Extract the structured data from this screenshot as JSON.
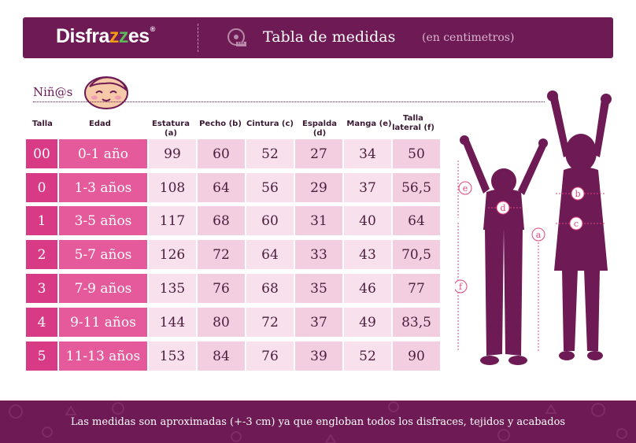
{
  "header": {
    "brand_prefix": "Disfra",
    "brand_z1": "z",
    "brand_z2": "z",
    "brand_suffix": "es",
    "brand_mark": "®",
    "title": "Tabla de medidas",
    "subtitle": "(en centimetros)",
    "icon": "measuring-tape-icon"
  },
  "section": {
    "label": "Niñ@s",
    "icon": "baby-face-icon"
  },
  "columns": [
    "Talla",
    "Edad",
    "Estatura (a)",
    "Pecho (b)",
    "Cintura (c)",
    "Espalda (d)",
    "Manga (e)",
    "Talla lateral (f)"
  ],
  "rows": [
    [
      "00",
      "0-1  año",
      "99",
      "60",
      "52",
      "27",
      "34",
      "50"
    ],
    [
      "0",
      "1-3 años",
      "108",
      "64",
      "56",
      "29",
      "37",
      "56,5"
    ],
    [
      "1",
      "3-5 años",
      "117",
      "68",
      "60",
      "31",
      "40",
      "64"
    ],
    [
      "2",
      "5-7 años",
      "126",
      "72",
      "64",
      "33",
      "43",
      "70,5"
    ],
    [
      "3",
      "7-9 años",
      "135",
      "76",
      "68",
      "35",
      "46",
      "77"
    ],
    [
      "4",
      "9-11 años",
      "144",
      "80",
      "72",
      "37",
      "49",
      "83,5"
    ],
    [
      "5",
      "11-13 años",
      "153",
      "84",
      "76",
      "39",
      "52",
      "90"
    ]
  ],
  "diagram_labels": [
    "a",
    "b",
    "c",
    "d",
    "e",
    "f"
  ],
  "footer": {
    "text": "Las medidas son aproximadas (+-3 cm) ya que engloban todos los disfraces, tejidos y acabados"
  },
  "colors": {
    "brand_purple": "#6d1a55",
    "talla_pink": "#d93a86",
    "edad_pink": "#e55a9b",
    "cell_light": "#f3cde0",
    "cell_lighter": "#f8e0ec",
    "accent": "#e2457f"
  }
}
